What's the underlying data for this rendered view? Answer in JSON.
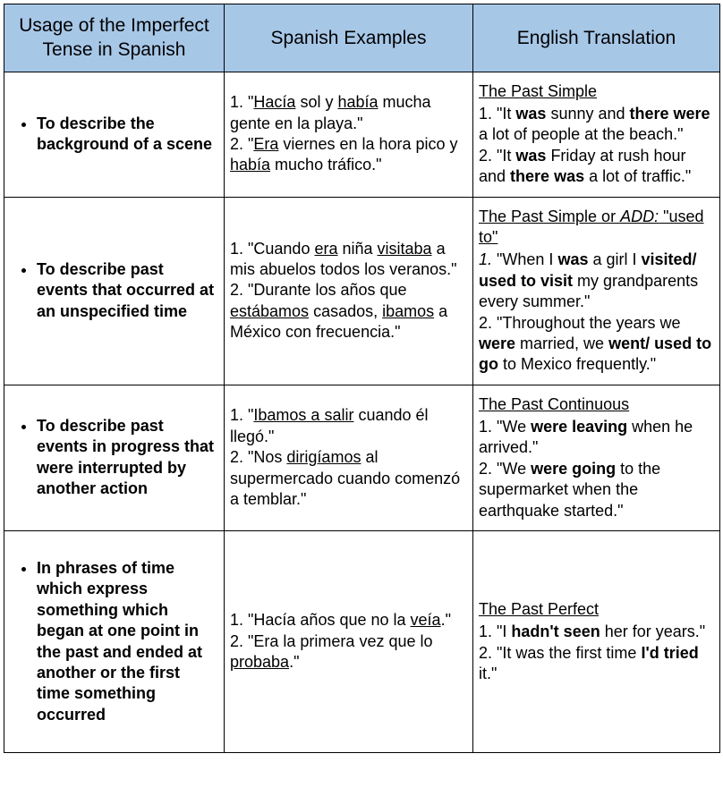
{
  "colors": {
    "header_bg": "#a7c7e7",
    "border": "#000000",
    "background": "#ffffff"
  },
  "header": {
    "col1": "Usage of the Imperfect Tense in Spanish",
    "col2": "Spanish Examples",
    "col3": "English Translation"
  },
  "rows": [
    {
      "usage": "To describe the background of a scene",
      "spanish": "1. \"<u>Hacía</u> sol y <u>había</u> mucha gente en la playa.\"<br>2. \"<u>Era</u> viernes en la hora pico y <u>había</u> mucho tráfico.\"",
      "english": "<span class='heading-en'>The Past Simple</span><br>1. \"It <b>was</b> sunny and <b>there were</b> a lot of people at the beach.\"<br>2. \"It <b>was</b> Friday at rush hour and <b>there was</b> a lot of traffic.\""
    },
    {
      "usage": "To describe past events that occurred at an unspecified time",
      "spanish": "1. \"Cuando <u>era</u> niña <u>visitaba</u> a mis abuelos todos los veranos.\"<br>2. \"Durante los años que <u>estábamos</u> casados, <u>ibamos</u> a México con frecuencia.\"",
      "english": "<span class='heading-en'>The Past Simple or <i>ADD:</i> \"used to\"</span><br><i>1.</i> \"When I <b>was</b> a girl I <b>visited/ used to visit</b> my grandparents every summer.\"<br>2. \"Throughout the years we <b>were</b> married, we <b>went/ used to go</b> to Mexico frequently.\""
    },
    {
      "usage": "To describe past events in progress that were interrupted by another action",
      "spanish": "1. \"<u>Ibamos a salir</u> cuando él llegó.\"<br>2. \"Nos <u>dirigíamos</u> al supermercado cuando comenzó a temblar.\"",
      "english": "<span class='heading-en'>The Past Continuous</span><br>1. \"We <b>were leaving</b> when he arrived.\"<br>2. \"We <b>were going</b> to the supermarket when the earthquake started.\""
    },
    {
      "usage": "In phrases of time which express something which began at one point in the past and ended at another or the first time something occurred",
      "spanish": "1. \"Hacía años que no la <u>veía</u>.\"<br>2. \"Era la primera vez que lo <u>probaba</u>.\"",
      "english": "<span class='heading-en'>The Past Perfect</span><br>1. \"I <b>hadn't seen</b> her for years.\"<br>2. \"It was the first time <b>I'd tried</b> it.\""
    }
  ]
}
